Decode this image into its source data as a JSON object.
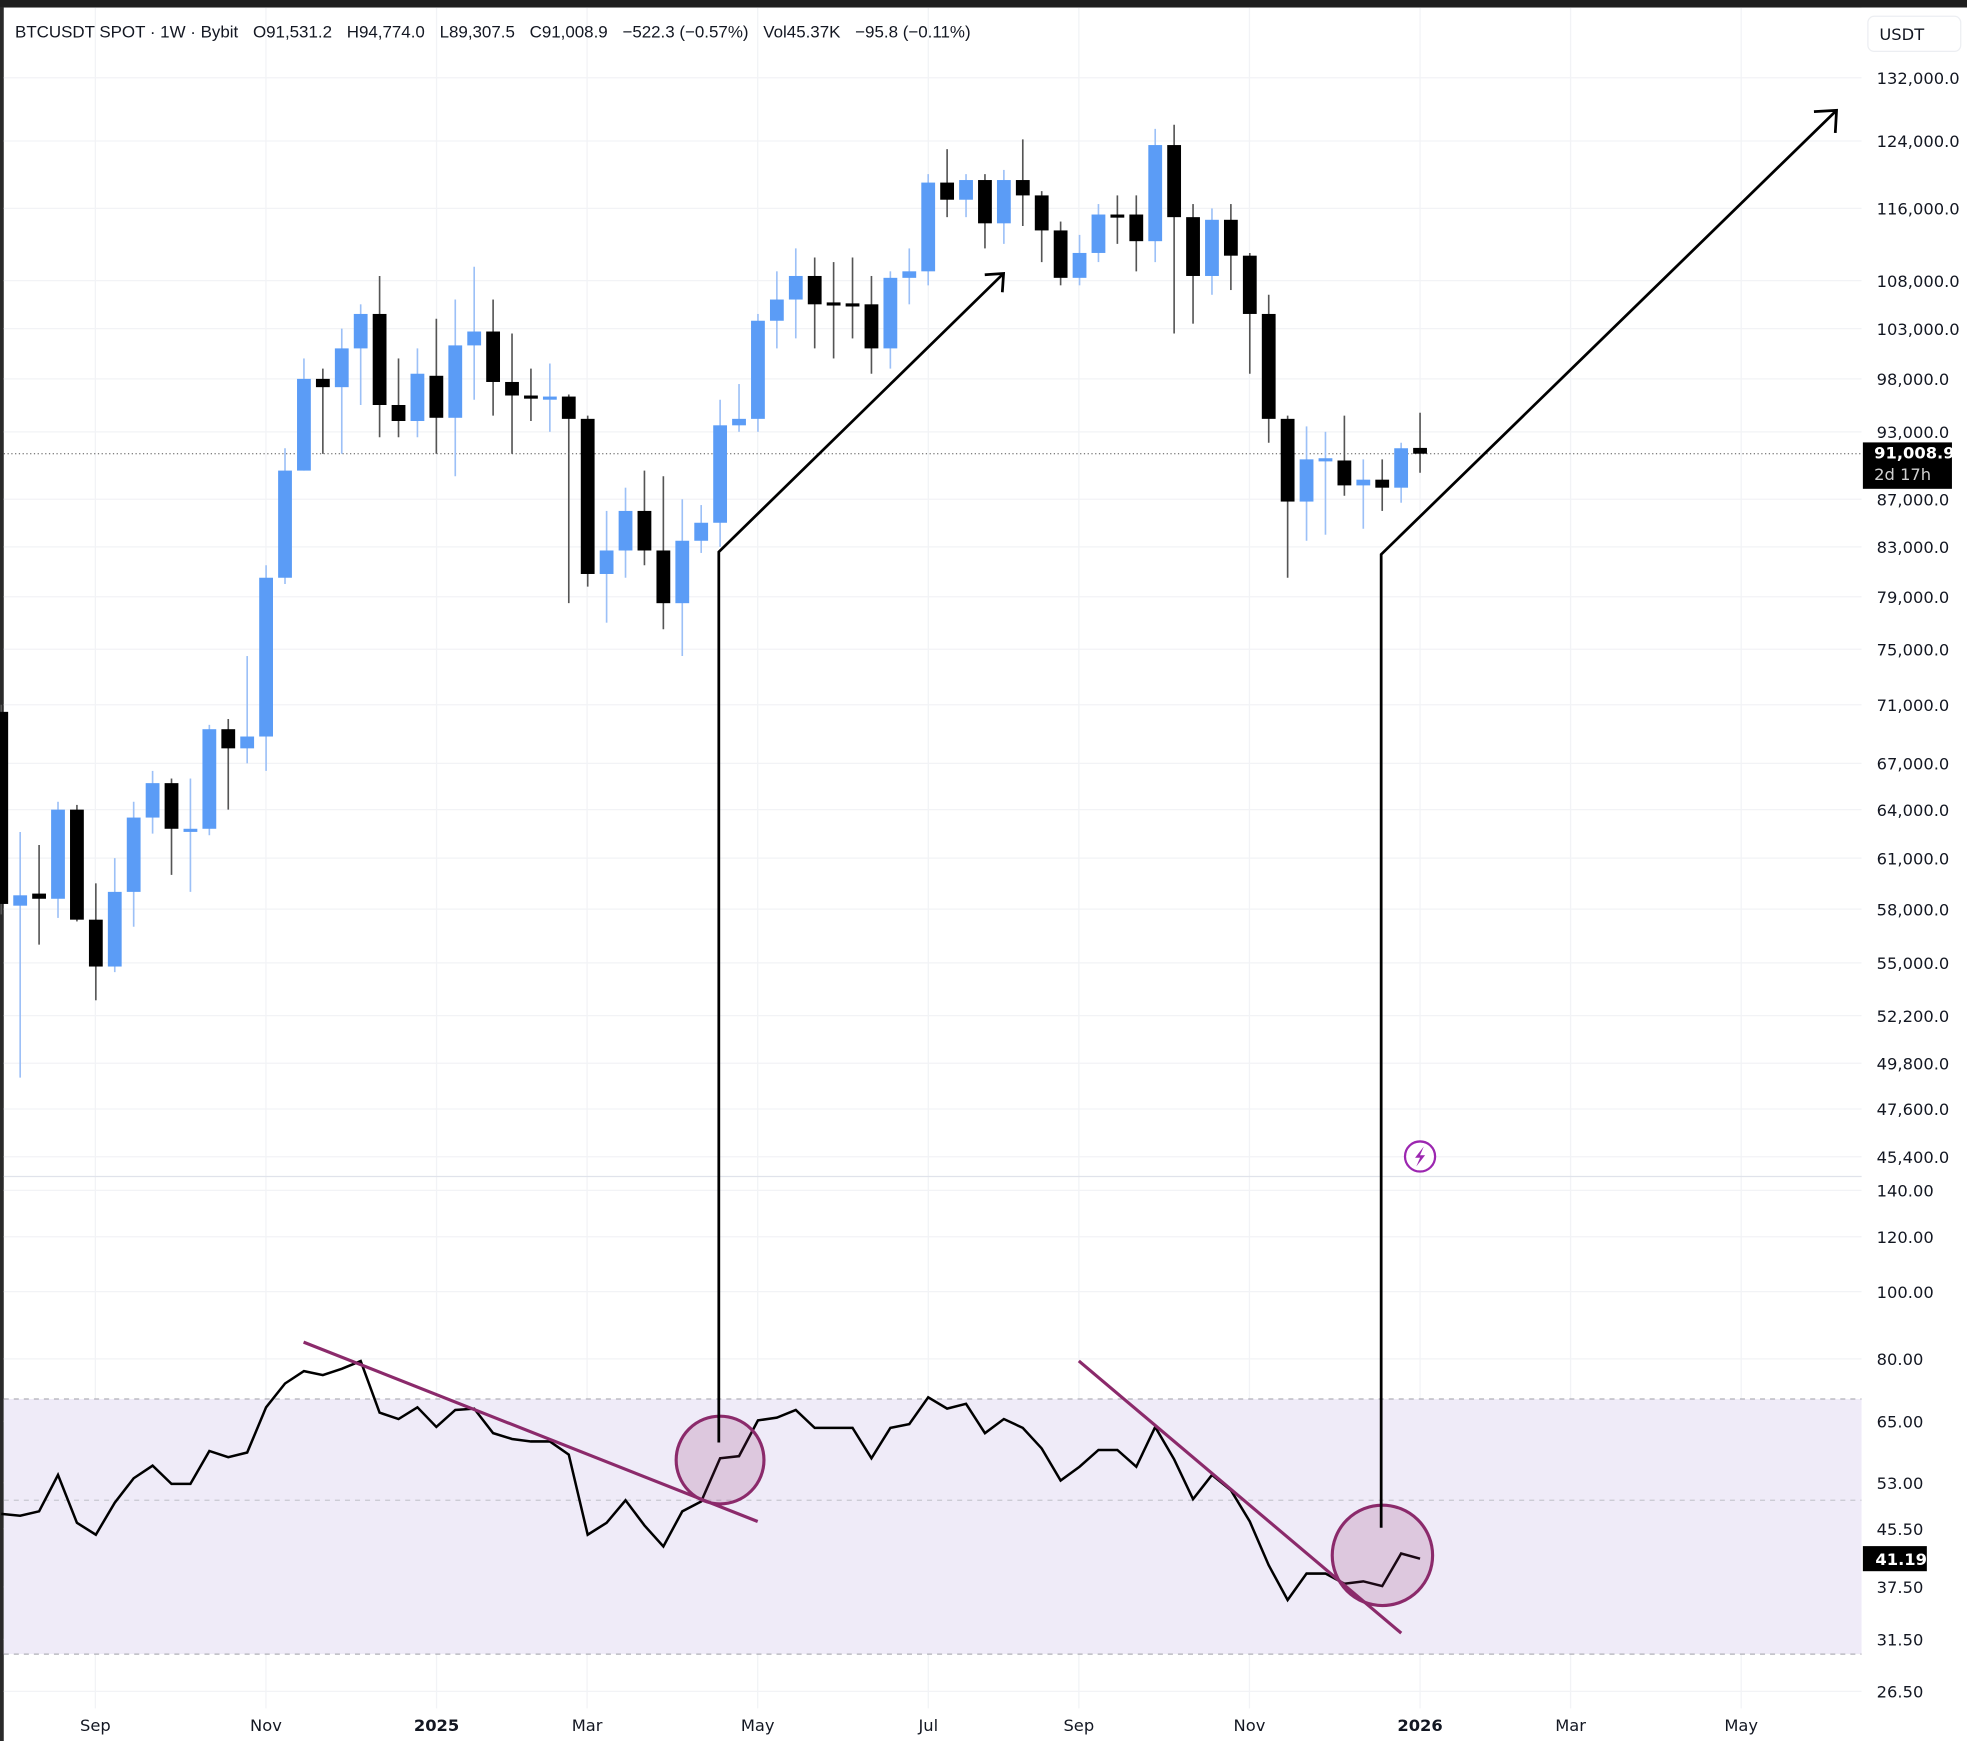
{
  "header": {
    "symbol": "BTCUSDT SPOT · 1W · Bybit",
    "open": "O91,531.2",
    "high": "H94,774.0",
    "low": "L89,307.5",
    "close": "C91,008.9",
    "change": "−522.3 (−0.57%)",
    "volume": "Vol45.37K",
    "volume_change": "−95.8 (−0.11%)"
  },
  "currency_button": "USDT",
  "price_axis": {
    "ticks": [
      "132,000.0",
      "124,000.0",
      "116,000.0",
      "108,000.0",
      "103,000.0",
      "98,000.0",
      "93,000.0",
      "87,000.0",
      "83,000.0",
      "79,000.0",
      "75,000.0",
      "71,000.0",
      "67,000.0",
      "64,000.0",
      "61,000.0",
      "58,000.0",
      "55,000.0",
      "52,200.0",
      "49,800.0",
      "47,600.0",
      "45,400.0"
    ],
    "tick_values": [
      132000,
      124000,
      116000,
      108000,
      103000,
      98000,
      93000,
      87000,
      83000,
      79000,
      75000,
      71000,
      67000,
      64000,
      61000,
      58000,
      55000,
      52200,
      49800,
      47600,
      45400
    ],
    "last_price": "91,008.9",
    "countdown": "2d 17h",
    "scale": "log"
  },
  "rsi_axis": {
    "ticks": [
      "140.00",
      "120.00",
      "100.00",
      "80.00",
      "65.00",
      "53.00",
      "45.50",
      "37.50",
      "31.50",
      "26.50"
    ],
    "tick_values": [
      140,
      120,
      100,
      80,
      65,
      53,
      45.5,
      37.5,
      31.5,
      26.5
    ],
    "last_value": "41.19",
    "band": [
      30,
      70
    ],
    "midline": 50
  },
  "time_axis": {
    "labels": [
      "Sep",
      "Nov",
      "2025",
      "Mar",
      "May",
      "Jul",
      "Sep",
      "Nov",
      "2026",
      "Mar",
      "May"
    ],
    "bold": [
      false,
      false,
      true,
      false,
      false,
      false,
      false,
      false,
      true,
      false,
      false
    ]
  },
  "colors": {
    "up": "#5b9cf6",
    "down": "#000000",
    "rsi_line": "#000000",
    "rsi_band": "#efebf8",
    "annotation": "#8b2a6b",
    "alert_icon": "#9c27b0"
  },
  "icons": {
    "alert": "lightning-bolt-icon"
  },
  "chart_data": [
    {
      "type": "candlestick",
      "interval": "1W",
      "ylim": [
        45400,
        132000
      ],
      "yscale": "log",
      "up_color": "#5b9cf6",
      "down_color": "#000000",
      "ohlc": [
        [
          70500,
          71000,
          57700,
          58300
        ],
        [
          58200,
          62600,
          49100,
          58800
        ],
        [
          58900,
          61800,
          56000,
          58600
        ],
        [
          58600,
          64500,
          57500,
          64000
        ],
        [
          64000,
          64300,
          57300,
          57400
        ],
        [
          57400,
          59500,
          53000,
          54800
        ],
        [
          54800,
          61000,
          54500,
          59000
        ],
        [
          59000,
          64500,
          57000,
          63500
        ],
        [
          63500,
          66500,
          62500,
          65700
        ],
        [
          65700,
          66000,
          60000,
          62800
        ],
        [
          62700,
          66000,
          59000,
          62800
        ],
        [
          62800,
          69600,
          62400,
          69300
        ],
        [
          69300,
          70000,
          64000,
          68000
        ],
        [
          68000,
          74500,
          67000,
          68800
        ],
        [
          68800,
          81500,
          66500,
          80500
        ],
        [
          80500,
          91500,
          80000,
          89500
        ],
        [
          89500,
          100000,
          89500,
          98000
        ],
        [
          98000,
          99000,
          91000,
          97200
        ],
        [
          97200,
          103000,
          91000,
          101000
        ],
        [
          101000,
          105500,
          95500,
          104500
        ],
        [
          104500,
          108500,
          92500,
          95500
        ],
        [
          95500,
          100000,
          92500,
          94000
        ],
        [
          94000,
          101000,
          92500,
          98500
        ],
        [
          98300,
          104000,
          91000,
          94300
        ],
        [
          94300,
          106000,
          89000,
          101300
        ],
        [
          101300,
          109500,
          96000,
          102700
        ],
        [
          102700,
          106000,
          94500,
          97700
        ],
        [
          97700,
          102500,
          91000,
          96400
        ],
        [
          96400,
          99000,
          94000,
          96100
        ],
        [
          96100,
          99500,
          93000,
          96300
        ],
        [
          96300,
          96500,
          78500,
          94200
        ],
        [
          94200,
          94500,
          79800,
          80800
        ],
        [
          80800,
          86000,
          77000,
          82700
        ],
        [
          82700,
          88000,
          80500,
          86000
        ],
        [
          86000,
          89500,
          81500,
          82700
        ],
        [
          82700,
          89000,
          76500,
          78500
        ],
        [
          78500,
          87000,
          74500,
          83500
        ],
        [
          83500,
          86500,
          82500,
          85000
        ],
        [
          85000,
          96000,
          83000,
          93600
        ],
        [
          93600,
          97500,
          93000,
          94200
        ],
        [
          94200,
          104500,
          93000,
          103800
        ],
        [
          103800,
          109000,
          101000,
          106000
        ],
        [
          106000,
          111500,
          102000,
          108500
        ],
        [
          108500,
          110500,
          101000,
          105500
        ],
        [
          105700,
          110000,
          100000,
          105400
        ],
        [
          105600,
          110500,
          102000,
          105400
        ],
        [
          105500,
          108500,
          98500,
          101000
        ],
        [
          101000,
          109000,
          99000,
          108300
        ],
        [
          108300,
          111500,
          105500,
          109000
        ],
        [
          109000,
          120000,
          107500,
          119000
        ],
        [
          119000,
          123000,
          115000,
          117000
        ],
        [
          117000,
          120000,
          115000,
          119300
        ],
        [
          119300,
          120000,
          111500,
          114300
        ],
        [
          114300,
          120500,
          112000,
          119300
        ],
        [
          119300,
          124200,
          114000,
          117500
        ],
        [
          117500,
          118000,
          110000,
          113500
        ],
        [
          113500,
          114500,
          107500,
          108300
        ],
        [
          108300,
          113000,
          107500,
          111000
        ],
        [
          111000,
          116500,
          110000,
          115300
        ],
        [
          115300,
          117500,
          112000,
          115000
        ],
        [
          115300,
          117500,
          109000,
          112300
        ],
        [
          112300,
          125500,
          110000,
          123500
        ],
        [
          123500,
          126000,
          102500,
          115000
        ],
        [
          115000,
          116500,
          103500,
          108500
        ],
        [
          108500,
          116000,
          106500,
          114700
        ],
        [
          114700,
          116500,
          107000,
          110700
        ],
        [
          110700,
          111000,
          98500,
          104500
        ],
        [
          104500,
          106500,
          92000,
          94200
        ],
        [
          94200,
          94500,
          80500,
          86800
        ],
        [
          86800,
          93500,
          83500,
          90500
        ],
        [
          90400,
          93000,
          84000,
          90600
        ],
        [
          90400,
          94500,
          87300,
          88200
        ],
        [
          88200,
          90500,
          84500,
          88700
        ],
        [
          88700,
          90500,
          86000,
          88000
        ],
        [
          88000,
          92000,
          86700,
          91500
        ],
        [
          91531.2,
          94774.0,
          89307.5,
          91008.9
        ]
      ]
    },
    {
      "type": "line",
      "ylim": [
        26.5,
        140
      ],
      "yscale": "log",
      "values": [
        47.8,
        47.5,
        48.2,
        54.4,
        46.4,
        44.6,
        49.6,
        53.8,
        56.1,
        52.8,
        52.8,
        58.9,
        57.7,
        58.6,
        68.1,
        73.7,
        76.8,
        75.8,
        77.4,
        79.4,
        66.9,
        65.5,
        68.1,
        63.8,
        67.5,
        67.8,
        62.5,
        61.3,
        60.8,
        60.8,
        58.2,
        44.6,
        46.4,
        50.0,
        46.0,
        42.9,
        48.2,
        49.8,
        57.5,
        57.9,
        65.2,
        65.8,
        67.5,
        63.6,
        63.6,
        63.6,
        57.5,
        63.6,
        64.4,
        70.4,
        67.8,
        68.9,
        62.5,
        65.5,
        63.6,
        59.4,
        53.4,
        55.9,
        59.1,
        59.1,
        55.9,
        63.8,
        57.3,
        50.2,
        54.4,
        51.7,
        46.6,
        40.3,
        35.9,
        39.2,
        39.2,
        37.9,
        38.2,
        37.6,
        41.9,
        41.19
      ]
    }
  ]
}
